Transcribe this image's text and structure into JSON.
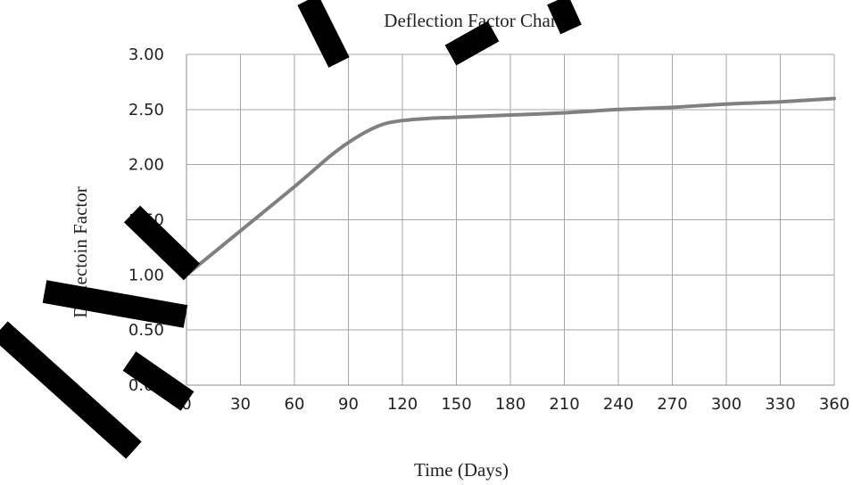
{
  "chart_data": {
    "type": "line",
    "title": "Deflection Factor Chart",
    "xlabel": "Time (Days)",
    "ylabel": "Deflectoin Factor",
    "xlim": [
      0,
      360
    ],
    "ylim": [
      0,
      3
    ],
    "x_ticks": [
      "0",
      "30",
      "60",
      "90",
      "120",
      "150",
      "180",
      "210",
      "240",
      "270",
      "300",
      "330",
      "360"
    ],
    "y_ticks": [
      "0.00",
      "0.50",
      "1.00",
      "1.50",
      "2.00",
      "2.50",
      "3.00"
    ],
    "grid": true,
    "legend": "none",
    "series": [
      {
        "color": "#808080",
        "x": [
          0,
          30,
          60,
          80,
          90,
          100,
          110,
          120,
          135,
          150,
          180,
          210,
          240,
          270,
          300,
          330,
          360
        ],
        "y": [
          1.0,
          1.4,
          1.8,
          2.08,
          2.2,
          2.3,
          2.37,
          2.4,
          2.42,
          2.43,
          2.45,
          2.47,
          2.5,
          2.52,
          2.55,
          2.57,
          2.6
        ]
      }
    ]
  }
}
